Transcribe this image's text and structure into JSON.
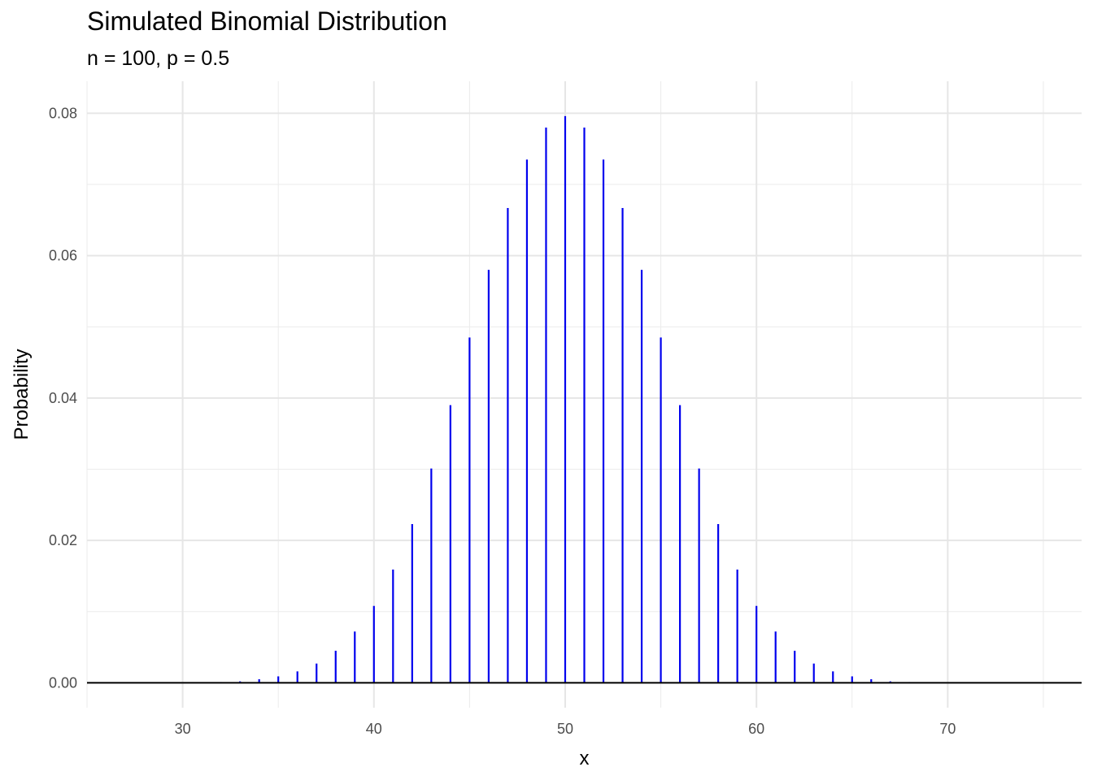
{
  "chart_data": {
    "type": "bar",
    "title": "Simulated Binomial Distribution",
    "subtitle": "n = 100, p = 0.5",
    "xlabel": "x",
    "ylabel": "Probability",
    "xlim": [
      25,
      77
    ],
    "ylim": [
      -0.0035,
      0.0845
    ],
    "x_ticks": [
      30,
      40,
      50,
      60,
      70
    ],
    "x_tick_labels": [
      "30",
      "40",
      "50",
      "60",
      "70"
    ],
    "y_ticks": [
      0,
      0.02,
      0.04,
      0.06,
      0.08
    ],
    "y_tick_labels": [
      "0.00",
      "0.02",
      "0.04",
      "0.06",
      "0.08"
    ],
    "grid": true,
    "color": "#0000ee",
    "baseline": 0,
    "x": [
      32,
      33,
      34,
      35,
      36,
      37,
      38,
      39,
      40,
      41,
      42,
      43,
      44,
      45,
      46,
      47,
      48,
      49,
      50,
      51,
      52,
      53,
      54,
      55,
      56,
      57,
      58,
      59,
      60,
      61,
      62,
      63,
      64,
      65,
      66,
      67,
      68
    ],
    "values": [
      0.0001,
      0.0002,
      0.0005,
      0.0009,
      0.0016,
      0.0027,
      0.0045,
      0.0072,
      0.0108,
      0.0159,
      0.0223,
      0.0301,
      0.039,
      0.0485,
      0.058,
      0.0667,
      0.0735,
      0.078,
      0.0796,
      0.078,
      0.0735,
      0.0667,
      0.058,
      0.0485,
      0.039,
      0.0301,
      0.0223,
      0.0159,
      0.0108,
      0.0072,
      0.0045,
      0.0027,
      0.0016,
      0.0009,
      0.0005,
      0.0002,
      0.0001
    ]
  }
}
